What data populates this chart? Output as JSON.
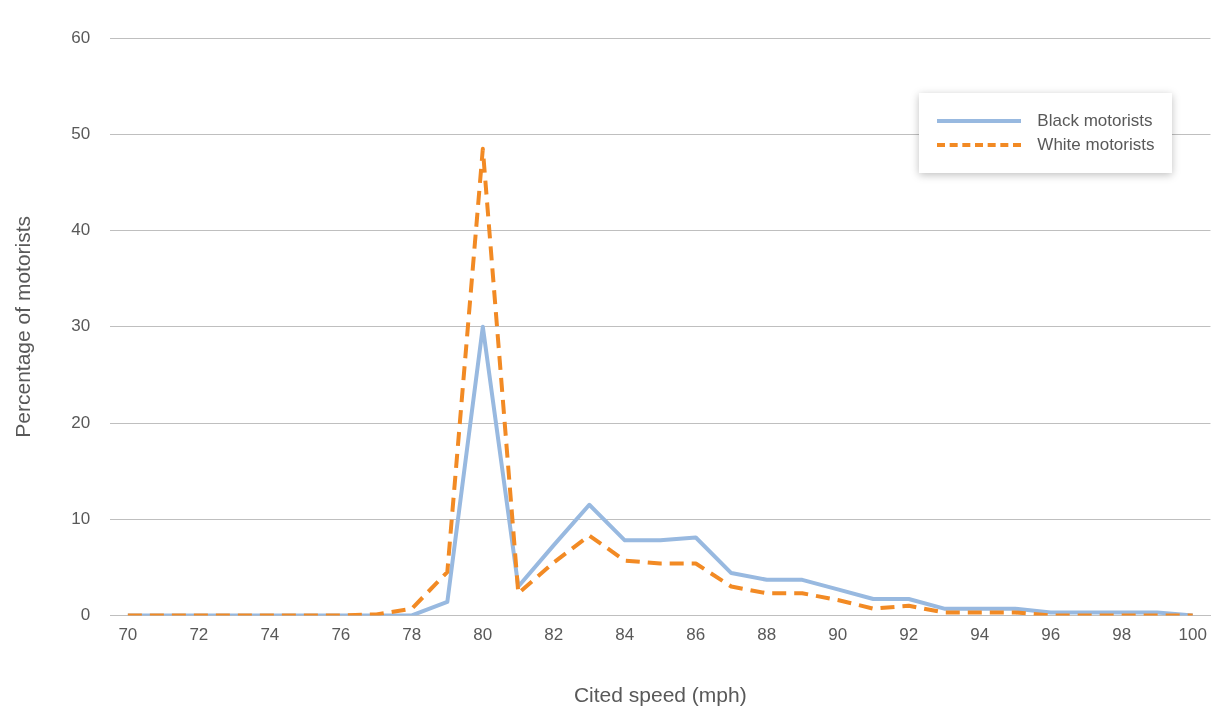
{
  "chart_data": {
    "type": "line",
    "xlabel": "Cited speed (mph)",
    "ylabel": "Percentage of motorists",
    "categories": [
      "70",
      null,
      "72",
      null,
      "74",
      null,
      "76",
      null,
      "78",
      null,
      "80",
      null,
      "82",
      null,
      "84",
      null,
      "86",
      null,
      "88",
      null,
      "90",
      null,
      "92",
      null,
      "94",
      null,
      "96",
      null,
      "98",
      null,
      "100"
    ],
    "series": [
      {
        "name": "Black motorists",
        "color": "#98b9e0",
        "line_style": "solid",
        "values": [
          0,
          0,
          0,
          0,
          0,
          0,
          0,
          0,
          0,
          1.4,
          30,
          3,
          7.3,
          11.5,
          7.8,
          7.8,
          8.1,
          4.4,
          3.7,
          3.7,
          2.7,
          1.7,
          1.7,
          0.7,
          0.7,
          0.7,
          0.3,
          0.3,
          0.3,
          0.3,
          0
        ]
      },
      {
        "name": "White motorists",
        "color": "#f28a24",
        "line_style": "dashed",
        "values": [
          0,
          0,
          0,
          0,
          0,
          0,
          0,
          0.1,
          0.7,
          4.5,
          48.5,
          2.3,
          5.5,
          8.3,
          5.7,
          5.4,
          5.4,
          3,
          2.3,
          2.3,
          1.6,
          0.7,
          1,
          0.3,
          0.3,
          0.3,
          0,
          0,
          0,
          0,
          0
        ]
      }
    ],
    "ylim": [
      0,
      60
    ],
    "yticks": [
      0,
      10,
      20,
      30,
      40,
      50,
      60
    ],
    "grid": "y",
    "legend": "top right",
    "marker": "none"
  }
}
